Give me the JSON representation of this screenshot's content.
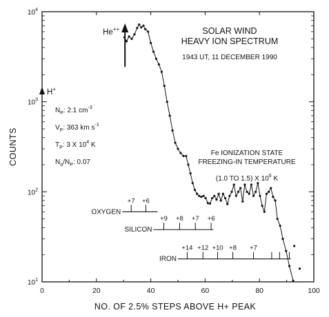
{
  "chart_data": {
    "type": "line",
    "title": "SOLAR WIND",
    "subtitle": "HEAVY ION SPECTRUM",
    "date_label": "1943 UT, 11 DECEMBER 1990",
    "xlabel": "NO. OF 2.5% STEPS ABOVE H+ PEAK",
    "ylabel": "COUNTS",
    "xlim": [
      0,
      100
    ],
    "ylim": [
      10,
      10000
    ],
    "yscale": "log",
    "x_ticks": [
      0,
      20,
      40,
      60,
      80,
      100
    ],
    "y_ticks": [
      {
        "value": 10,
        "base": "10",
        "exp": "1"
      },
      {
        "value": 100,
        "base": "10",
        "exp": "2"
      },
      {
        "value": 1000,
        "base": "10",
        "exp": "3"
      },
      {
        "value": 10000,
        "base": "10",
        "exp": "4"
      }
    ],
    "grid": false,
    "series": [
      {
        "x": [
          30.3,
          31.1,
          32.0,
          33.0,
          34.0,
          35.0,
          35.7,
          36.5,
          37.3,
          38.0,
          39.0,
          40.0,
          41.0,
          42.0,
          43.0,
          44.0,
          45.0,
          46.0,
          47.0,
          48.0,
          49.0,
          50.0,
          51.0,
          52.0,
          53.0,
          53.8,
          54.6,
          55.4,
          56.2,
          57.0,
          57.8,
          58.6,
          59.4,
          60.2,
          61.0,
          61.8,
          62.6,
          63.4,
          64.2,
          65.0,
          65.8,
          66.6,
          67.4,
          68.2,
          69.0,
          69.8,
          70.6,
          71.4,
          72.2,
          73.0,
          73.8,
          74.6,
          75.4,
          76.2,
          77.0,
          77.8,
          78.6,
          79.4,
          80.2,
          81.0,
          81.8,
          82.6,
          83.4,
          84.2,
          85.0,
          85.8,
          86.6,
          87.6,
          88.6,
          89.8,
          91.0,
          92.4
        ],
        "y": [
          5200,
          4700,
          5300,
          5000,
          5600,
          6600,
          7200,
          6700,
          7000,
          6400,
          6000,
          4500,
          3600,
          3000,
          2600,
          2150,
          1500,
          1000,
          700,
          480,
          350,
          300,
          270,
          250,
          250,
          200,
          160,
          125,
          105,
          95,
          90,
          88,
          90,
          85,
          75,
          74,
          85,
          90,
          82,
          95,
          80,
          95,
          85,
          73,
          90,
          100,
          120,
          90,
          100,
          110,
          78,
          120,
          100,
          95,
          120,
          90,
          100,
          125,
          90,
          70,
          60,
          95,
          100,
          110,
          88,
          80,
          50,
          42,
          30,
          22,
          15,
          10.3
        ]
      }
    ],
    "late_points": {
      "x": [
        92.8,
        94.8
      ],
      "y": [
        25,
        14
      ]
    },
    "annotations": {
      "he_label": "He",
      "he_sup": "++",
      "he_x": 30.5,
      "hp_label": "H",
      "hp_sup": "+",
      "params": [
        {
          "name": "N",
          "sub": "P",
          "text": ":   2.1 cm",
          "sup": "-3"
        },
        {
          "name": "V",
          "sub": "P",
          "text": ":   363 km s",
          "sup": "-1"
        },
        {
          "name": "T",
          "sub": "P",
          "text": ":   3 X 10",
          "sup": "4",
          "after": " K"
        },
        {
          "name": "N",
          "sub": "α",
          "text": "/N",
          "sub2": "P",
          "after": ":  0.07"
        }
      ],
      "fe_title_1": "Fe IONIZATION STATE",
      "fe_title_2": "FREEZING-IN TEMPERATURE",
      "fe_range_text": "(1.0 TO 1.5) X 10",
      "fe_range_sup": "6",
      "fe_range_after": " K"
    },
    "ion_scales": [
      {
        "name": "OXYGEN",
        "y": 60,
        "line_x": [
          29.5,
          42.5
        ],
        "ticks": [
          {
            "x": 32.8,
            "label": "+7"
          },
          {
            "x": 38.2,
            "label": "+6"
          }
        ]
      },
      {
        "name": "SILICON",
        "y": 38,
        "line_x": [
          41.0,
          63.0
        ],
        "ticks": [
          {
            "x": 44.8,
            "label": "+9"
          },
          {
            "x": 50.6,
            "label": "+8"
          },
          {
            "x": 56.4,
            "label": "+7"
          },
          {
            "x": 62.2,
            "label": "+6"
          }
        ]
      },
      {
        "name": "IRON",
        "y": 18,
        "line_x": [
          50.0,
          91.5
        ],
        "ticks": [
          {
            "x": 53.4,
            "label": "+14"
          },
          {
            "x": 59.2,
            "label": "+12"
          },
          {
            "x": 64.6,
            "label": "+10"
          },
          {
            "x": 70.2,
            "label": "+8"
          },
          {
            "x": 77.8,
            "label": "+7"
          },
          {
            "x": 84.5,
            "label": ""
          },
          {
            "x": 87.4,
            "label": ""
          },
          {
            "x": 91.0,
            "label": ""
          }
        ]
      }
    ]
  }
}
